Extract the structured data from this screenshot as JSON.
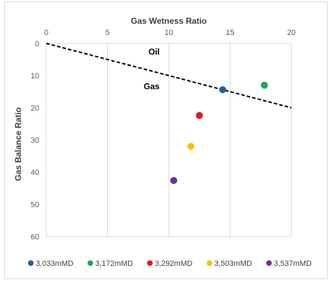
{
  "chart_data": {
    "type": "scatter",
    "title": "",
    "xlabel": "Gas Wetness Ratio",
    "ylabel": "Gas Balance Ratio",
    "xlim": [
      0,
      20
    ],
    "ylim": [
      0,
      60
    ],
    "y_inverted": true,
    "x_axis_position": "top",
    "x_ticks": [
      0,
      5,
      10,
      15,
      20
    ],
    "y_ticks": [
      0,
      10,
      20,
      30,
      40,
      50,
      60
    ],
    "grid": "vertical",
    "legend_position": "bottom",
    "series": [
      {
        "name": "3,033mMD",
        "color": "#1f5fa8",
        "points": [
          {
            "x": 14.4,
            "y": 14.4
          }
        ]
      },
      {
        "name": "3,172mMD",
        "color": "#21a65a",
        "points": [
          {
            "x": 17.8,
            "y": 13.0
          }
        ]
      },
      {
        "name": "3,292mMD",
        "color": "#e21b1b",
        "points": [
          {
            "x": 12.5,
            "y": 22.4
          }
        ]
      },
      {
        "name": "3,503mMD",
        "color": "#ffc000",
        "points": [
          {
            "x": 11.8,
            "y": 32.0
          }
        ]
      },
      {
        "name": "3,537mMD",
        "color": "#7030a0",
        "points": [
          {
            "x": 10.4,
            "y": 42.6
          }
        ]
      }
    ],
    "boundary_line": {
      "x": [
        0,
        20
      ],
      "y": [
        0,
        20
      ],
      "style": "dashed",
      "color": "#000000"
    },
    "annotations": [
      {
        "text": "Oil",
        "x": 8.8,
        "y": 3.5
      },
      {
        "text": "Gas",
        "x": 8.6,
        "y": 14.2
      }
    ]
  }
}
